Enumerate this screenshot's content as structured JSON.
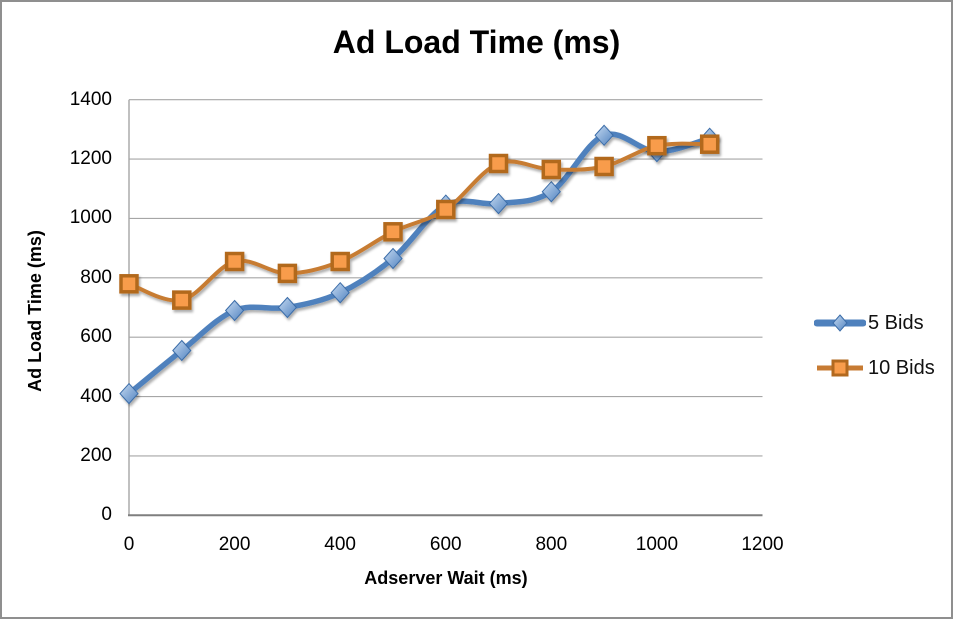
{
  "chart_data": {
    "type": "line",
    "title": "Ad Load Time (ms)",
    "xlabel": "Adserver Wait (ms)",
    "ylabel": "Ad Load Time (ms)",
    "x": [
      0,
      100,
      200,
      300,
      400,
      500,
      600,
      700,
      800,
      900,
      1000,
      1100
    ],
    "series": [
      {
        "name": "5 Bids",
        "marker": "diamond",
        "line_color": "#4f81bd",
        "marker_fill_light": "#bdd5f0",
        "marker_fill_dark": "#5688c7",
        "marker_stroke": "#3a6ca8",
        "values": [
          410,
          555,
          690,
          700,
          750,
          865,
          1045,
          1050,
          1090,
          1280,
          1225,
          1270
        ]
      },
      {
        "name": "10 Bids",
        "marker": "square",
        "line_color": "#c77b33",
        "marker_fill": "#f89c4b",
        "marker_stroke": "#b2691f",
        "values": [
          780,
          725,
          855,
          815,
          855,
          955,
          1030,
          1185,
          1165,
          1175,
          1245,
          1250
        ]
      }
    ],
    "xlim": [
      0,
      1200
    ],
    "ylim": [
      0,
      1400
    ],
    "x_ticks": [
      0,
      200,
      400,
      600,
      800,
      1000,
      1200
    ],
    "y_ticks": [
      0,
      200,
      400,
      600,
      800,
      1000,
      1200,
      1400
    ],
    "grid": true,
    "legend_position": "right",
    "gridline_color": "#a6a6a6",
    "axis_color": "#7f7f7f",
    "smoothed_lines": true
  }
}
